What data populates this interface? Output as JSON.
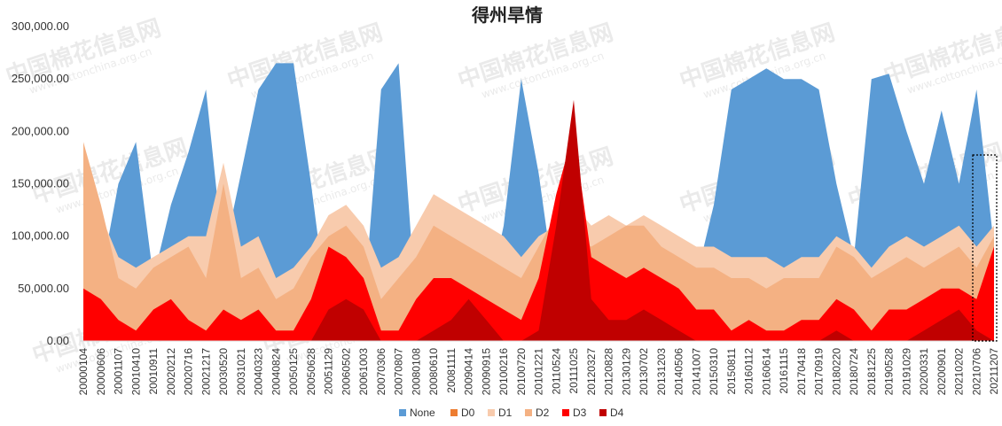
{
  "chart_data": {
    "type": "area",
    "stacked": false,
    "title": "得州旱情",
    "xlabel": "",
    "ylabel": "",
    "ylim": [
      0,
      300000
    ],
    "yticks": [
      "0.00",
      "50,000.00",
      "100,000.00",
      "150,000.00",
      "200,000.00",
      "250,000.00",
      "300,000.00"
    ],
    "ytick_values": [
      0,
      50000,
      100000,
      150000,
      200000,
      250000,
      300000
    ],
    "grid": false,
    "legend_position": "bottom",
    "categories": [
      "20000104",
      "20000606",
      "20001107",
      "20010410",
      "20010911",
      "20020212",
      "20020716",
      "20021217",
      "20030520",
      "20031021",
      "20040323",
      "20040824",
      "20050125",
      "20050628",
      "20051129",
      "20060502",
      "20061003",
      "20070306",
      "20070807",
      "20080108",
      "20080610",
      "20081111",
      "20090414",
      "20090915",
      "20100216",
      "20100720",
      "20101221",
      "20110524",
      "20111025",
      "20120327",
      "20120828",
      "20130129",
      "20130702",
      "20131203",
      "20140506",
      "20141007",
      "20150310",
      "20150811",
      "20160112",
      "20160614",
      "20161115",
      "20170418",
      "20170919",
      "20180220",
      "20180724",
      "20181225",
      "20190528",
      "20191029",
      "20200331",
      "20200901",
      "20210202",
      "20210706",
      "20211207"
    ],
    "series": [
      {
        "name": "None",
        "color": "#5b9bd5",
        "values": [
          20000,
          60000,
          150000,
          190000,
          60000,
          130000,
          180000,
          240000,
          80000,
          160000,
          240000,
          265000,
          265000,
          150000,
          20000,
          10000,
          30000,
          240000,
          265000,
          30000,
          80000,
          80000,
          40000,
          30000,
          110000,
          250000,
          160000,
          40000,
          10000,
          20000,
          30000,
          40000,
          60000,
          60000,
          50000,
          60000,
          130000,
          240000,
          250000,
          260000,
          250000,
          250000,
          240000,
          150000,
          80000,
          250000,
          255000,
          200000,
          150000,
          220000,
          150000,
          240000,
          90000
        ]
      },
      {
        "name": "D0",
        "color": "#ed7d31",
        "values": [
          20000,
          40000,
          55000,
          50000,
          60000,
          55000,
          70000,
          60000,
          60000,
          75000,
          80000,
          50000,
          40000,
          60000,
          70000,
          95000,
          90000,
          60000,
          50000,
          90000,
          120000,
          100000,
          80000,
          50000,
          60000,
          40000,
          90000,
          100000,
          60000,
          80000,
          100000,
          110000,
          90000,
          80000,
          70000,
          60000,
          60000,
          50000,
          60000,
          50000,
          60000,
          70000,
          60000,
          80000,
          60000,
          50000,
          40000,
          50000,
          70000,
          90000,
          80000,
          60000,
          100000
        ]
      },
      {
        "name": "D1",
        "color": "#f8cbad",
        "values": [
          80000,
          120000,
          80000,
          70000,
          80000,
          90000,
          100000,
          100000,
          170000,
          90000,
          100000,
          60000,
          70000,
          90000,
          120000,
          130000,
          110000,
          70000,
          80000,
          110000,
          140000,
          130000,
          120000,
          110000,
          100000,
          80000,
          100000,
          110000,
          130000,
          110000,
          120000,
          110000,
          120000,
          110000,
          100000,
          90000,
          90000,
          80000,
          80000,
          80000,
          70000,
          80000,
          80000,
          100000,
          90000,
          70000,
          90000,
          100000,
          90000,
          100000,
          110000,
          90000,
          110000
        ]
      },
      {
        "name": "D2",
        "color": "#f4b183",
        "values": [
          190000,
          130000,
          60000,
          50000,
          70000,
          80000,
          90000,
          60000,
          150000,
          60000,
          70000,
          40000,
          50000,
          80000,
          100000,
          110000,
          90000,
          40000,
          60000,
          80000,
          110000,
          100000,
          90000,
          80000,
          70000,
          60000,
          90000,
          120000,
          100000,
          90000,
          100000,
          110000,
          110000,
          90000,
          80000,
          70000,
          70000,
          60000,
          60000,
          50000,
          60000,
          60000,
          60000,
          90000,
          80000,
          60000,
          70000,
          80000,
          70000,
          80000,
          90000,
          70000,
          100000
        ]
      },
      {
        "name": "D3",
        "color": "#ff0000",
        "values": [
          50000,
          40000,
          20000,
          10000,
          30000,
          40000,
          20000,
          10000,
          30000,
          20000,
          30000,
          10000,
          10000,
          40000,
          90000,
          80000,
          60000,
          10000,
          10000,
          40000,
          60000,
          60000,
          50000,
          40000,
          30000,
          20000,
          60000,
          140000,
          200000,
          80000,
          70000,
          60000,
          70000,
          60000,
          50000,
          30000,
          30000,
          10000,
          20000,
          10000,
          10000,
          20000,
          20000,
          40000,
          30000,
          10000,
          30000,
          30000,
          40000,
          50000,
          50000,
          40000,
          90000
        ]
      },
      {
        "name": "D4",
        "color": "#c00000",
        "values": [
          0,
          0,
          0,
          0,
          0,
          0,
          0,
          0,
          0,
          0,
          0,
          0,
          0,
          0,
          30000,
          40000,
          30000,
          0,
          0,
          0,
          10000,
          20000,
          40000,
          20000,
          0,
          0,
          10000,
          110000,
          230000,
          40000,
          20000,
          20000,
          30000,
          20000,
          10000,
          0,
          0,
          0,
          0,
          0,
          0,
          0,
          0,
          10000,
          0,
          0,
          0,
          0,
          10000,
          20000,
          30000,
          10000,
          0
        ]
      }
    ]
  },
  "watermark": {
    "text": "中国棉花信息网",
    "url": "www.cottonchina.org.cn"
  }
}
